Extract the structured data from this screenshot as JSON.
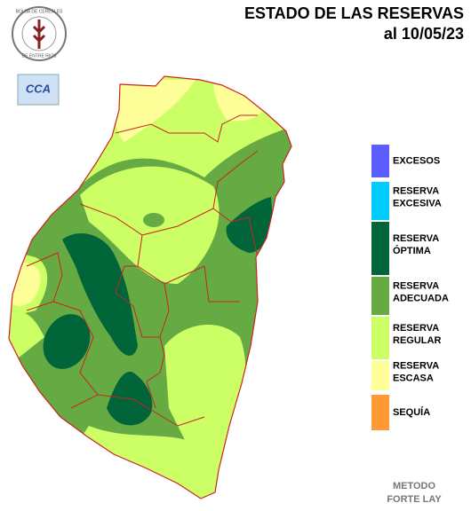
{
  "header": {
    "title": "ESTADO DE LAS RESERVAS",
    "date": "al 10/05/23"
  },
  "logo": {
    "top": "BOLSA DE CEREALES",
    "bottom": "DE ENTRE RIOS",
    "badge": "CCA"
  },
  "legend": [
    {
      "lines": [
        "EXCESOS"
      ],
      "color": "#5c5cff"
    },
    {
      "lines": [
        "RESERVA",
        "EXCESIVA"
      ],
      "color": "#00ccff"
    },
    {
      "lines": [
        "RESERVA",
        "ÓPTIMA"
      ],
      "color": "#00663a"
    },
    {
      "lines": [
        "RESERVA",
        "ADECUADA"
      ],
      "color": "#66aa44"
    },
    {
      "lines": [
        "RESERVA",
        "REGULAR"
      ],
      "color": "#ccff66"
    },
    {
      "lines": [
        "RESERVA",
        "ESCASA"
      ],
      "color": "#ffff99"
    },
    {
      "lines": [
        "SEQUÍA"
      ],
      "color": "#ff9933"
    }
  ],
  "method": [
    "METODO",
    "FORTE LAY"
  ]
}
